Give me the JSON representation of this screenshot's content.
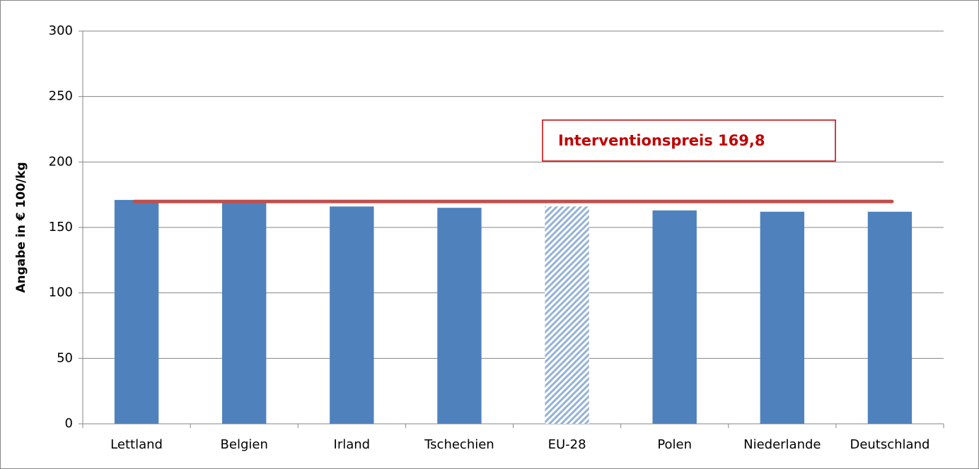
{
  "chart_data": {
    "type": "bar",
    "y_label": "Angabe in € 100/kg",
    "categories": [
      "Lettland",
      "Belgien",
      "Irland",
      "Tschechien",
      "EU-28",
      "Polen",
      "Niederlande",
      "Deutschland"
    ],
    "values": [
      171,
      169,
      166,
      165,
      166,
      163,
      162,
      162
    ],
    "hatch": [
      false,
      false,
      false,
      false,
      true,
      false,
      false,
      false
    ],
    "color": "#4f81bd",
    "ylim": [
      0,
      300
    ],
    "yticks": [
      0,
      50,
      100,
      150,
      200,
      250,
      300
    ],
    "grid": true,
    "reference_line": {
      "value": 169.8,
      "label": "Interventionspreis 169,8",
      "color": "#c0504d",
      "label_color": "#c00000"
    }
  }
}
